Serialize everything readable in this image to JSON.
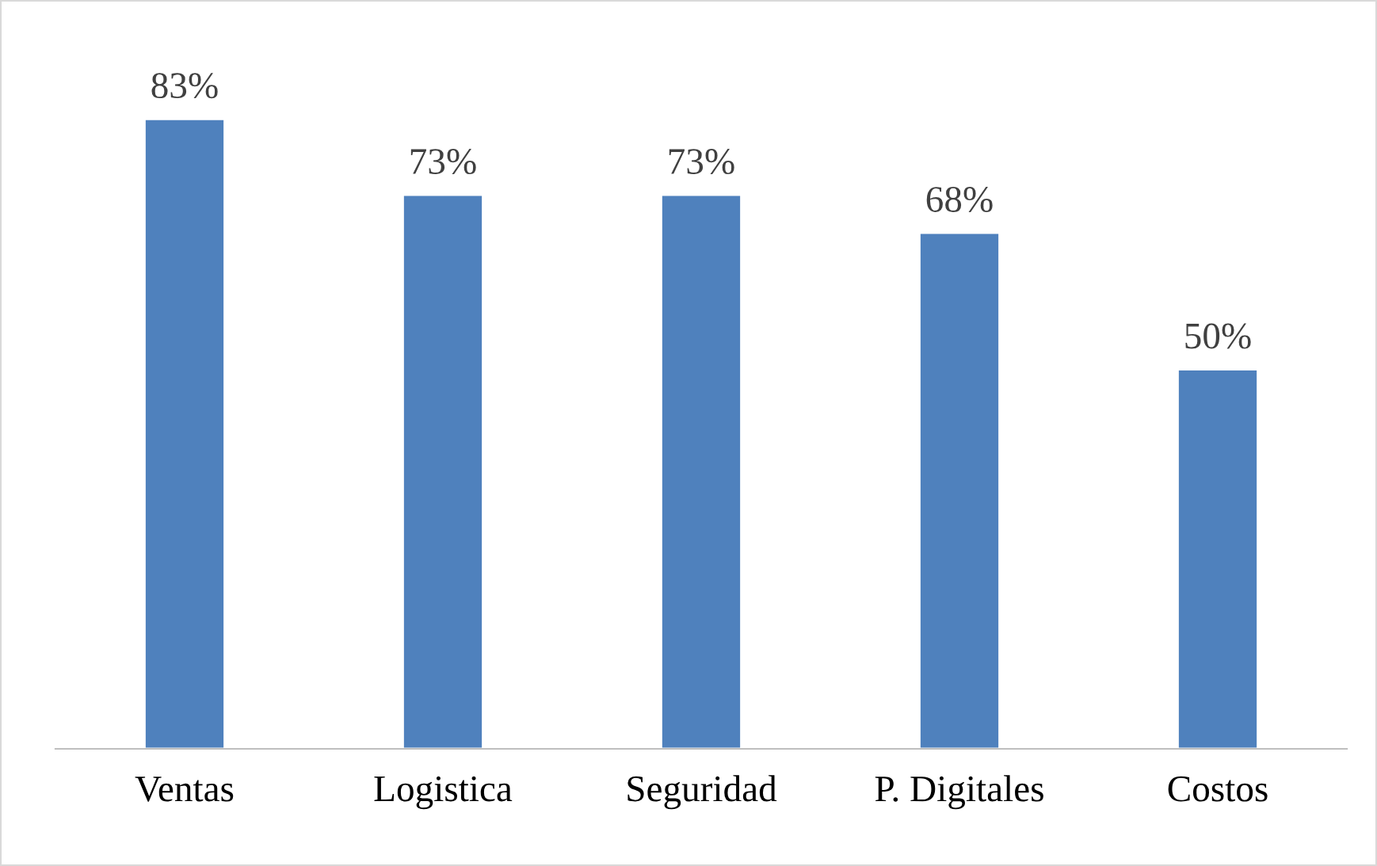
{
  "chart_data": {
    "type": "bar",
    "categories": [
      "Ventas",
      "Logistica",
      "Seguridad",
      "P. Digitales",
      "Costos"
    ],
    "values": [
      83,
      73,
      73,
      68,
      50
    ],
    "value_labels": [
      "83%",
      "73%",
      "73%",
      "68%",
      "50%"
    ],
    "color": "#4f81bd",
    "grid": false,
    "legend": false
  }
}
